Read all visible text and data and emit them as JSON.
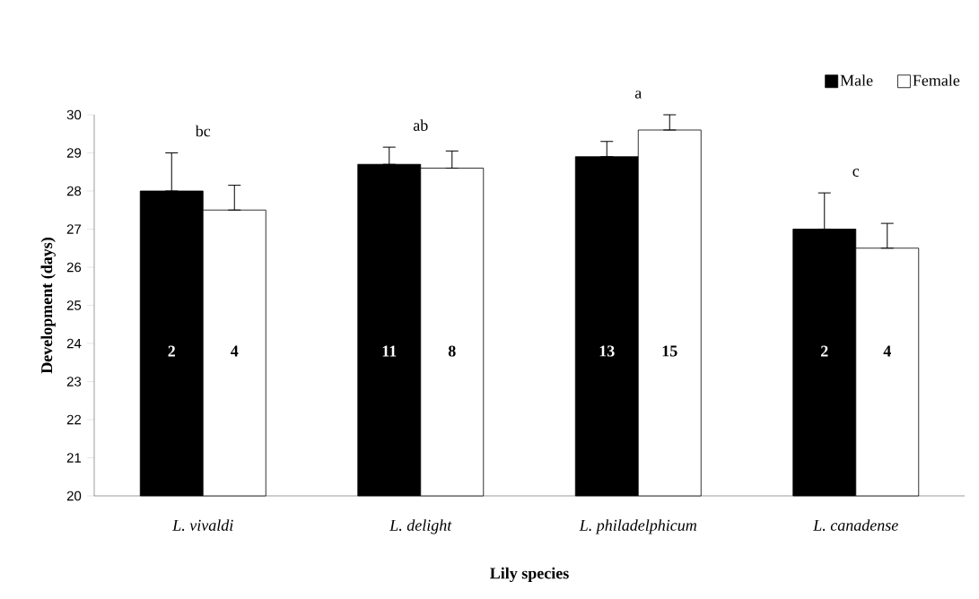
{
  "chart_data": {
    "type": "bar",
    "xlabel": "Lily species",
    "ylabel": "Development (days)",
    "categories": [
      "L. vivaldi",
      "L. delight",
      "L. philadelphicum",
      "L. canadense"
    ],
    "series": [
      {
        "name": "Male",
        "color": "#000000",
        "values": [
          28.0,
          28.7,
          28.9,
          27.0
        ],
        "errors": [
          [
            28.0,
            29.0
          ],
          [
            28.7,
            29.15
          ],
          [
            28.9,
            29.3
          ],
          [
            27.0,
            27.95
          ]
        ]
      },
      {
        "name": "Female",
        "color": "#ffffff",
        "values": [
          27.5,
          28.6,
          29.6,
          26.5
        ],
        "errors": [
          [
            27.5,
            28.15
          ],
          [
            28.6,
            29.05
          ],
          [
            29.6,
            30.0
          ],
          [
            26.5,
            27.15
          ]
        ]
      }
    ],
    "ylim": [
      20,
      30
    ],
    "yticks": [
      20,
      21,
      22,
      23,
      24,
      25,
      26,
      27,
      28,
      29,
      30
    ],
    "grid": false,
    "legend": "top right",
    "annotations": [
      "bc",
      "ab",
      "a",
      "c",
      "2",
      "4",
      "11",
      "8",
      "13",
      "15",
      "2",
      "4"
    ]
  }
}
